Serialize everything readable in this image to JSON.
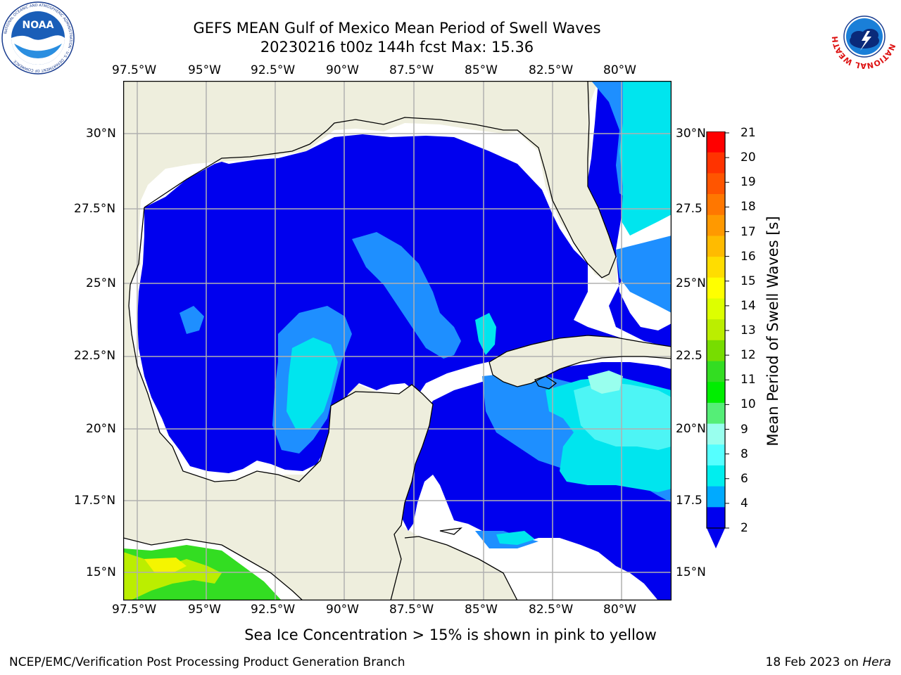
{
  "title": {
    "line1": "GEFS MEAN Gulf of Mexico Mean Period of Swell Waves",
    "line2": "20230216 t00z 144h fcst   Max: 15.36"
  },
  "logos": {
    "noaa_text": "NOAA",
    "noaa_ring_text": "NATIONAL OCEANIC AND ATMOSPHERIC ADMINISTRATION · U.S. DEPARTMENT OF COMMERCE",
    "nws_ring_text": "NATIONAL WEATHER SERVICE"
  },
  "map": {
    "lon_labels": [
      "97.5°W",
      "95°W",
      "92.5°W",
      "90°W",
      "87.5°W",
      "85°W",
      "82.5°W",
      "80°W"
    ],
    "lat_labels_left": [
      "30°N",
      "27.5°N",
      "25°N",
      "22.5°N",
      "20°N",
      "17.5°N",
      "15°N"
    ],
    "lat_labels_right": [
      "30°N",
      "27.5",
      "25°N",
      "22.5",
      "20°N",
      "17.5",
      "15°N"
    ],
    "colors": {
      "land": "#eeeedd",
      "ocean_default": "#0000ee",
      "swell_4_6": "#1e8fff",
      "swell_6_8": "#00e5ee",
      "swell_8_9": "#4df5f5",
      "swell_9_10": "#99ffee",
      "grid": "#b0b0b0",
      "sea_ice_green": "#33dd22",
      "sea_ice_lime": "#bbee00",
      "sea_ice_yellow": "#f5f500"
    }
  },
  "colorbar": {
    "label": "Mean Period of Swell Waves [s]",
    "ticks": [
      "21",
      "20",
      "19",
      "18",
      "17",
      "16",
      "15",
      "14",
      "13",
      "12",
      "11",
      "10",
      "9",
      "8",
      "6",
      "4",
      "2"
    ],
    "colors": [
      "#ff0000",
      "#ff3300",
      "#ff5500",
      "#ff7700",
      "#ff9900",
      "#ffbb00",
      "#ffdd00",
      "#ffff00",
      "#ddff00",
      "#bbee00",
      "#77dd00",
      "#33dd22",
      "#00ee00",
      "#55ee77",
      "#99ffee",
      "#55ffff",
      "#00eeee",
      "#00aaff",
      "#0000ee"
    ]
  },
  "note": "Sea Ice Concentration > 15% is shown in pink to yellow",
  "footer": {
    "left": "NCEP/EMC/Verification Post Processing Product Generation Branch",
    "right_prefix": "18 Feb 2023 on ",
    "right_host": "Hera"
  }
}
